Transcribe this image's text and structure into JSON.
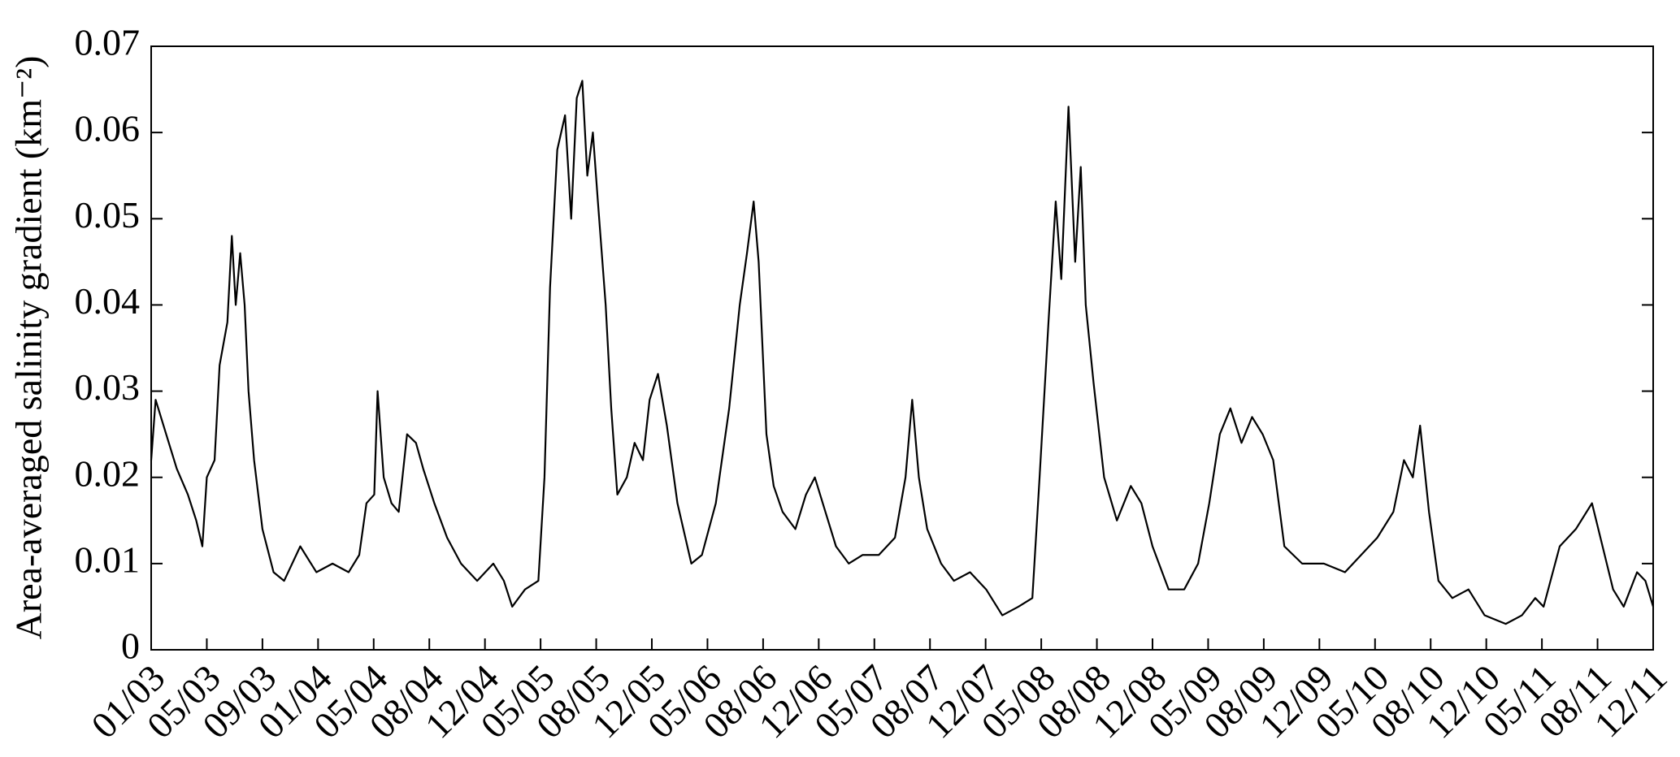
{
  "chart_data": {
    "type": "line",
    "ylabel": "Area-averaged salinity gradient (km⁻²)",
    "x": [
      0,
      0.08,
      0.27,
      0.46,
      0.66,
      0.81,
      0.92,
      1.0,
      1.14,
      1.23,
      1.37,
      1.45,
      1.52,
      1.6,
      1.68,
      1.75,
      1.85,
      2.0,
      2.2,
      2.39,
      2.68,
      2.97,
      3.26,
      3.55,
      3.74,
      3.87,
      4.01,
      4.07,
      4.18,
      4.32,
      4.45,
      4.6,
      4.76,
      4.89,
      5.09,
      5.32,
      5.57,
      5.86,
      6.15,
      6.34,
      6.49,
      6.72,
      6.96,
      7.07,
      7.17,
      7.3,
      7.44,
      7.55,
      7.65,
      7.75,
      7.84,
      7.94,
      8.03,
      8.17,
      8.27,
      8.38,
      8.55,
      8.69,
      8.84,
      8.96,
      9.11,
      9.27,
      9.46,
      9.71,
      9.9,
      10.15,
      10.39,
      10.58,
      10.71,
      10.83,
      10.92,
      11.06,
      11.19,
      11.35,
      11.58,
      11.77,
      11.93,
      12.12,
      12.31,
      12.54,
      12.79,
      13.08,
      13.37,
      13.56,
      13.68,
      13.8,
      13.95,
      14.2,
      14.43,
      14.72,
      15.01,
      15.3,
      15.59,
      15.84,
      15.97,
      16.13,
      16.26,
      16.36,
      16.49,
      16.61,
      16.71,
      16.8,
      16.94,
      17.13,
      17.36,
      17.61,
      17.8,
      18.0,
      18.29,
      18.57,
      18.82,
      19.02,
      19.21,
      19.4,
      19.6,
      19.79,
      19.98,
      20.17,
      20.37,
      20.69,
      21.08,
      21.46,
      21.75,
      22.04,
      22.33,
      22.52,
      22.68,
      22.81,
      22.97,
      23.14,
      23.39,
      23.68,
      23.97,
      24.35,
      24.64,
      24.88,
      25.03,
      25.32,
      25.61,
      25.9,
      26.09,
      26.28,
      26.47,
      26.71,
      26.86,
      27.0
    ],
    "series": [
      {
        "color": "#000000",
        "values": [
          0.022,
          0.029,
          0.025,
          0.021,
          0.018,
          0.015,
          0.012,
          0.02,
          0.022,
          0.033,
          0.038,
          0.048,
          0.04,
          0.046,
          0.04,
          0.03,
          0.022,
          0.014,
          0.009,
          0.008,
          0.012,
          0.009,
          0.01,
          0.009,
          0.011,
          0.017,
          0.018,
          0.03,
          0.02,
          0.017,
          0.016,
          0.025,
          0.024,
          0.021,
          0.017,
          0.013,
          0.01,
          0.008,
          0.01,
          0.008,
          0.005,
          0.007,
          0.008,
          0.02,
          0.042,
          0.058,
          0.062,
          0.05,
          0.064,
          0.066,
          0.055,
          0.06,
          0.052,
          0.04,
          0.028,
          0.018,
          0.02,
          0.024,
          0.022,
          0.029,
          0.032,
          0.026,
          0.017,
          0.01,
          0.011,
          0.017,
          0.028,
          0.04,
          0.046,
          0.052,
          0.045,
          0.025,
          0.019,
          0.016,
          0.014,
          0.018,
          0.02,
          0.016,
          0.012,
          0.01,
          0.011,
          0.011,
          0.013,
          0.02,
          0.029,
          0.02,
          0.014,
          0.01,
          0.008,
          0.009,
          0.007,
          0.004,
          0.005,
          0.006,
          0.02,
          0.038,
          0.052,
          0.043,
          0.063,
          0.045,
          0.056,
          0.04,
          0.031,
          0.02,
          0.015,
          0.019,
          0.017,
          0.012,
          0.007,
          0.007,
          0.01,
          0.017,
          0.025,
          0.028,
          0.024,
          0.027,
          0.025,
          0.022,
          0.012,
          0.01,
          0.01,
          0.009,
          0.011,
          0.013,
          0.016,
          0.022,
          0.02,
          0.026,
          0.016,
          0.008,
          0.006,
          0.007,
          0.004,
          0.003,
          0.004,
          0.006,
          0.005,
          0.012,
          0.014,
          0.017,
          0.012,
          0.007,
          0.005,
          0.009,
          0.008,
          0.005
        ]
      }
    ],
    "xlim": [
      0,
      27
    ],
    "xticks": [
      {
        "value": 0,
        "label": "01/03"
      },
      {
        "value": 1,
        "label": "05/03"
      },
      {
        "value": 2,
        "label": "09/03"
      },
      {
        "value": 3,
        "label": "01/04"
      },
      {
        "value": 4,
        "label": "05/04"
      },
      {
        "value": 5,
        "label": "08/04"
      },
      {
        "value": 6,
        "label": "12/04"
      },
      {
        "value": 7,
        "label": "05/05"
      },
      {
        "value": 8,
        "label": "08/05"
      },
      {
        "value": 9,
        "label": "12/05"
      },
      {
        "value": 10,
        "label": "05/06"
      },
      {
        "value": 11,
        "label": "08/06"
      },
      {
        "value": 12,
        "label": "12/06"
      },
      {
        "value": 13,
        "label": "05/07"
      },
      {
        "value": 14,
        "label": "08/07"
      },
      {
        "value": 15,
        "label": "12/07"
      },
      {
        "value": 16,
        "label": "05/08"
      },
      {
        "value": 17,
        "label": "08/08"
      },
      {
        "value": 18,
        "label": "12/08"
      },
      {
        "value": 19,
        "label": "05/09"
      },
      {
        "value": 20,
        "label": "08/09"
      },
      {
        "value": 21,
        "label": "12/09"
      },
      {
        "value": 22,
        "label": "05/10"
      },
      {
        "value": 23,
        "label": "08/10"
      },
      {
        "value": 24,
        "label": "12/10"
      },
      {
        "value": 25,
        "label": "05/11"
      },
      {
        "value": 26,
        "label": "08/11"
      },
      {
        "value": 27,
        "label": "12/11"
      }
    ],
    "ylim": [
      0,
      0.07
    ],
    "yticks": [
      0,
      0.01,
      0.02,
      0.03,
      0.04,
      0.05,
      0.06,
      0.07
    ],
    "grid": false
  }
}
